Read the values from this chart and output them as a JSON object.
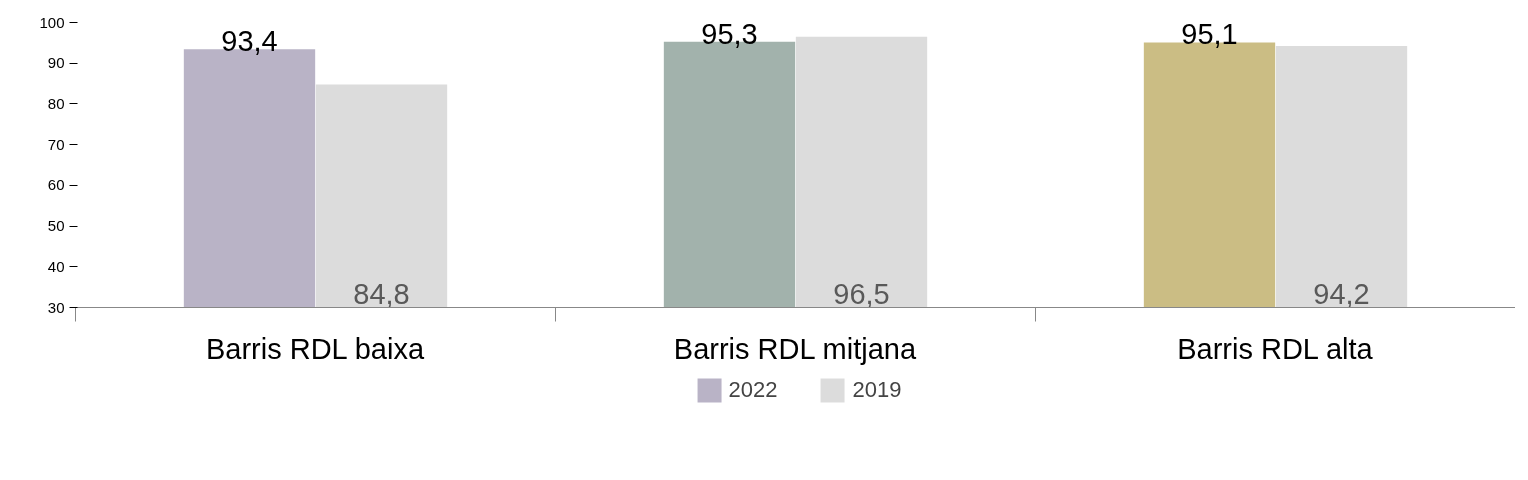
{
  "chart_data": {
    "type": "bar",
    "categories": [
      "Barris RDL baixa",
      "Barris RDL mitjana",
      "Barris RDL alta"
    ],
    "series": [
      {
        "name": "2022",
        "colors": [
          "#b9b3c6",
          "#a2b2ac",
          "#cbbd84"
        ],
        "values": [
          93.4,
          95.3,
          95.1
        ],
        "value_labels": [
          "93,4",
          "95,3",
          "95,1"
        ]
      },
      {
        "name": "2019",
        "color": "#dcdcdc",
        "values": [
          84.8,
          96.5,
          94.2
        ],
        "value_labels": [
          "84,8",
          "96,5",
          "94,2"
        ]
      }
    ],
    "ylim": [
      30,
      100
    ],
    "yticks": [
      30,
      40,
      50,
      60,
      70,
      80,
      90,
      100
    ],
    "grid": false,
    "legend": "bottom"
  }
}
